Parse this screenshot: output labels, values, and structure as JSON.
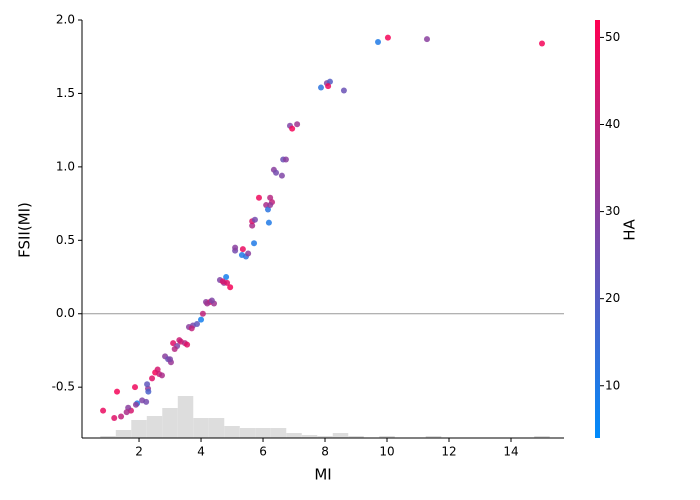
{
  "chart_data": {
    "type": "scatter",
    "xlabel": "MI",
    "ylabel": "FSII(MI)",
    "xlim": [
      0.16,
      15.71
    ],
    "ylim": [
      -0.846,
      2.0
    ],
    "xticks": [
      2,
      4,
      6,
      8,
      10,
      12,
      14
    ],
    "yticks": [
      -0.5,
      {
        "value": 0,
        "label": "0.0"
      },
      0.5,
      {
        "value": 1,
        "label": "1.0"
      },
      1.5,
      {
        "value": 2,
        "label": "2.0"
      }
    ],
    "hline": 0,
    "cmap": [
      "#008bfb",
      "#ff0052"
    ],
    "colorbar": {
      "label": "HA",
      "lim": [
        4,
        52
      ],
      "ticks": [
        10,
        20,
        30,
        40,
        50
      ]
    },
    "x": [
      0.84,
      1.29,
      1.2,
      1.42,
      1.74,
      1.87,
      1.65,
      1.94,
      2.1,
      2.23,
      2.29,
      2.26,
      2.42,
      2.52,
      2.65,
      2.74,
      2.84,
      2.94,
      3.03,
      3.1,
      3.23,
      3.35,
      3.48,
      3.61,
      3.74,
      3.87,
      4.0,
      4.06,
      4.16,
      4.29,
      4.42,
      4.61,
      4.74,
      4.84,
      4.81,
      4.94,
      5.1,
      5.1,
      5.35,
      5.32,
      5.45,
      5.52,
      5.65,
      5.65,
      5.71,
      5.74,
      5.87,
      6.1,
      6.16,
      6.19,
      6.23,
      6.29,
      6.23,
      6.35,
      6.42,
      6.61,
      6.65,
      6.74,
      6.87,
      6.94,
      7.1,
      7.87,
      8.06,
      8.16,
      8.1,
      8.61,
      9.71,
      10.03,
      11.29,
      15.0,
      1.6,
      1.9,
      2.3,
      2.6,
      3.0,
      3.15,
      3.3,
      3.55,
      3.7,
      4.2,
      4.35,
      4.7
    ],
    "values": [
      -0.66,
      -0.53,
      -0.71,
      -0.7,
      -0.66,
      -0.5,
      -0.64,
      -0.61,
      -0.59,
      -0.6,
      -0.51,
      -0.48,
      -0.44,
      -0.4,
      -0.41,
      -0.42,
      -0.29,
      -0.31,
      -0.33,
      -0.2,
      -0.22,
      -0.19,
      -0.2,
      -0.09,
      -0.08,
      -0.07,
      -0.04,
      0.0,
      0.08,
      0.08,
      0.07,
      0.23,
      0.21,
      0.21,
      0.25,
      0.18,
      0.43,
      0.45,
      0.44,
      0.4,
      0.39,
      0.41,
      0.6,
      0.63,
      0.48,
      0.64,
      0.79,
      0.74,
      0.71,
      0.62,
      0.79,
      0.76,
      0.74,
      0.98,
      0.96,
      0.94,
      1.05,
      1.05,
      1.28,
      1.26,
      1.29,
      1.54,
      1.57,
      1.58,
      1.55,
      1.52,
      1.85,
      1.88,
      1.87,
      1.84,
      -0.67,
      -0.62,
      -0.53,
      -0.38,
      -0.31,
      -0.24,
      -0.18,
      -0.21,
      -0.1,
      0.07,
      0.09,
      0.22
    ],
    "color_values": [
      48,
      50,
      46,
      40,
      44,
      49,
      30,
      10,
      28,
      26,
      32,
      22,
      46,
      50,
      42,
      36,
      30,
      24,
      33,
      46,
      28,
      44,
      38,
      30,
      26,
      22,
      8,
      40,
      30,
      46,
      34,
      28,
      32,
      46,
      8,
      50,
      26,
      30,
      48,
      10,
      12,
      30,
      36,
      44,
      10,
      26,
      49,
      36,
      12,
      10,
      38,
      40,
      32,
      30,
      26,
      28,
      24,
      30,
      28,
      50,
      34,
      12,
      28,
      20,
      48,
      24,
      10,
      50,
      30,
      50,
      36,
      30,
      18,
      44,
      28,
      38,
      42,
      46,
      40,
      34,
      28,
      44
    ],
    "histogram": {
      "bins": [
        0.75,
        1.25,
        1.75,
        2.25,
        2.75,
        3.25,
        3.75,
        4.25,
        4.75,
        5.25,
        5.75,
        6.25,
        6.75,
        7.25,
        7.75,
        8.25,
        8.75,
        9.25,
        9.75,
        10.25,
        10.75,
        11.25,
        11.75,
        12.25,
        12.75,
        13.25,
        13.75,
        14.25,
        14.75,
        15.25
      ],
      "counts": [
        2,
        8,
        18,
        22,
        30,
        42,
        20,
        20,
        12,
        10,
        10,
        10,
        5,
        3,
        2,
        5,
        2,
        0,
        2,
        0,
        0,
        2,
        0,
        0,
        0,
        0,
        0,
        0,
        2
      ]
    }
  }
}
